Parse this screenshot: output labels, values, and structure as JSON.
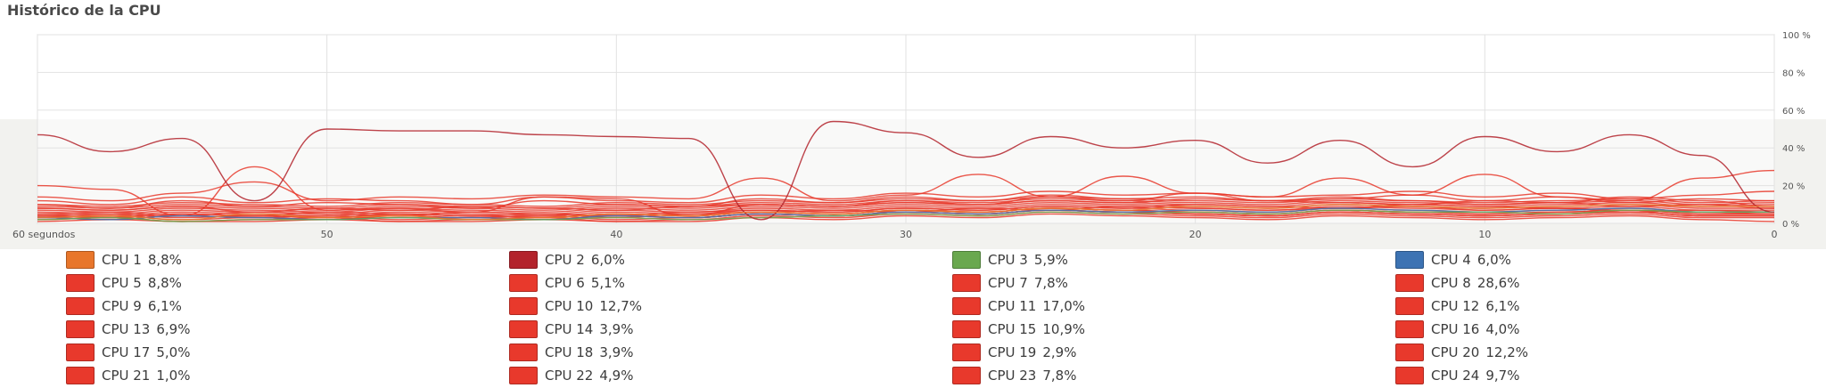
{
  "title": "Histórico de la CPU",
  "chart_data": {
    "type": "line",
    "xlabel": "",
    "ylabel": "",
    "x_ticks": [
      "60 segundos",
      "50",
      "40",
      "30",
      "20",
      "10",
      "0"
    ],
    "y_ticks": [
      "0 %",
      "20 %",
      "40 %",
      "60 %",
      "80 %",
      "100 %"
    ],
    "x_range": [
      60,
      0
    ],
    "ylim": [
      0,
      100
    ],
    "grid": true,
    "x": [
      60,
      57.5,
      55,
      52.5,
      50,
      47.5,
      45,
      42.5,
      40,
      37.5,
      35,
      32.5,
      30,
      27.5,
      25,
      22.5,
      20,
      17.5,
      15,
      12.5,
      10,
      7.5,
      5,
      2.5,
      0
    ],
    "series": [
      {
        "name": "CPU 1",
        "color": "#e8762b",
        "values": [
          3,
          4,
          2,
          5,
          3,
          4,
          2,
          3,
          5,
          4,
          6,
          5,
          7,
          6,
          8,
          7,
          9,
          8,
          10,
          9,
          8,
          9,
          10,
          9,
          9
        ]
      },
      {
        "name": "CPU 2",
        "color": "#b3232c",
        "values": [
          47,
          38,
          45,
          12,
          50,
          49,
          49,
          47,
          46,
          45,
          2,
          54,
          48,
          35,
          46,
          40,
          44,
          32,
          44,
          30,
          46,
          38,
          47,
          36,
          6
        ]
      },
      {
        "name": "CPU 3",
        "color": "#6aa84f",
        "values": [
          2,
          3,
          1,
          2,
          2,
          3,
          2,
          2,
          3,
          2,
          3,
          4,
          5,
          4,
          6,
          5,
          6,
          5,
          7,
          6,
          6,
          5,
          7,
          6,
          6
        ]
      },
      {
        "name": "CPU 4",
        "color": "#3d73b3",
        "values": [
          3,
          2,
          4,
          3,
          2,
          3,
          3,
          2,
          4,
          3,
          5,
          4,
          6,
          5,
          7,
          6,
          7,
          6,
          8,
          7,
          6,
          7,
          8,
          6,
          6
        ]
      },
      {
        "name": "CPU 5",
        "color": "#e8392c",
        "values": [
          20,
          18,
          4,
          30,
          7,
          8,
          6,
          14,
          13,
          4,
          10,
          9,
          12,
          10,
          14,
          12,
          16,
          12,
          14,
          12,
          10,
          11,
          14,
          12,
          9
        ]
      },
      {
        "name": "CPU 6",
        "color": "#e8392c",
        "values": [
          5,
          6,
          4,
          6,
          5,
          4,
          6,
          5,
          4,
          6,
          7,
          6,
          8,
          7,
          9,
          8,
          10,
          9,
          8,
          10,
          9,
          8,
          7,
          6,
          5
        ]
      },
      {
        "name": "CPU 7",
        "color": "#e8392c",
        "values": [
          8,
          7,
          9,
          6,
          8,
          7,
          9,
          8,
          7,
          9,
          10,
          9,
          11,
          10,
          12,
          11,
          13,
          12,
          11,
          10,
          12,
          11,
          9,
          10,
          8
        ]
      },
      {
        "name": "CPU 8",
        "color": "#e8392c",
        "values": [
          14,
          12,
          16,
          22,
          12,
          14,
          13,
          15,
          14,
          13,
          24,
          12,
          15,
          26,
          14,
          25,
          16,
          14,
          24,
          15,
          26,
          14,
          12,
          24,
          28
        ]
      },
      {
        "name": "CPU 9",
        "color": "#e8392c",
        "values": [
          4,
          5,
          3,
          4,
          6,
          5,
          4,
          5,
          3,
          5,
          6,
          7,
          6,
          8,
          7,
          9,
          8,
          7,
          8,
          9,
          7,
          8,
          6,
          7,
          6
        ]
      },
      {
        "name": "CPU 10",
        "color": "#e8392c",
        "values": [
          10,
          8,
          12,
          9,
          11,
          10,
          8,
          12,
          10,
          9,
          13,
          11,
          14,
          12,
          15,
          13,
          14,
          12,
          13,
          15,
          12,
          14,
          11,
          13,
          12
        ]
      },
      {
        "name": "CPU 11",
        "color": "#e8392c",
        "values": [
          12,
          10,
          14,
          11,
          13,
          12,
          10,
          14,
          12,
          11,
          15,
          13,
          16,
          14,
          17,
          15,
          16,
          14,
          15,
          17,
          14,
          16,
          13,
          15,
          17
        ]
      },
      {
        "name": "CPU 12",
        "color": "#e8392c",
        "values": [
          5,
          4,
          6,
          5,
          4,
          6,
          5,
          4,
          6,
          5,
          7,
          6,
          8,
          7,
          9,
          8,
          7,
          6,
          8,
          7,
          6,
          7,
          8,
          6,
          6
        ]
      },
      {
        "name": "CPU 13",
        "color": "#e8392c",
        "values": [
          6,
          5,
          7,
          6,
          5,
          7,
          6,
          5,
          7,
          6,
          8,
          7,
          9,
          8,
          10,
          9,
          8,
          7,
          9,
          8,
          7,
          8,
          9,
          7,
          7
        ]
      },
      {
        "name": "CPU 14",
        "color": "#e8392c",
        "values": [
          3,
          2,
          4,
          3,
          2,
          4,
          3,
          2,
          4,
          3,
          5,
          4,
          6,
          5,
          7,
          6,
          5,
          4,
          6,
          5,
          4,
          5,
          6,
          4,
          4
        ]
      },
      {
        "name": "CPU 15",
        "color": "#e8392c",
        "values": [
          9,
          8,
          10,
          9,
          8,
          10,
          9,
          8,
          10,
          9,
          11,
          10,
          12,
          11,
          13,
          12,
          11,
          10,
          12,
          11,
          10,
          11,
          12,
          10,
          11
        ]
      },
      {
        "name": "CPU 16",
        "color": "#e8392c",
        "values": [
          3,
          4,
          2,
          3,
          4,
          2,
          3,
          4,
          2,
          3,
          5,
          4,
          6,
          5,
          7,
          6,
          5,
          4,
          6,
          5,
          4,
          5,
          6,
          4,
          4
        ]
      },
      {
        "name": "CPU 17",
        "color": "#e8392c",
        "values": [
          4,
          3,
          5,
          4,
          3,
          5,
          4,
          3,
          5,
          4,
          6,
          5,
          7,
          6,
          8,
          7,
          6,
          5,
          7,
          6,
          5,
          6,
          7,
          5,
          5
        ]
      },
      {
        "name": "CPU 18",
        "color": "#e8392c",
        "values": [
          3,
          2,
          4,
          3,
          2,
          4,
          3,
          2,
          4,
          3,
          5,
          4,
          6,
          5,
          7,
          6,
          5,
          4,
          6,
          5,
          4,
          5,
          6,
          4,
          4
        ]
      },
      {
        "name": "CPU 19",
        "color": "#e8392c",
        "values": [
          2,
          3,
          1,
          2,
          3,
          1,
          2,
          3,
          1,
          2,
          4,
          3,
          5,
          4,
          6,
          5,
          4,
          3,
          5,
          4,
          3,
          4,
          5,
          3,
          3
        ]
      },
      {
        "name": "CPU 20",
        "color": "#e8392c",
        "values": [
          10,
          9,
          11,
          10,
          9,
          11,
          10,
          9,
          11,
          10,
          12,
          11,
          13,
          12,
          14,
          13,
          12,
          11,
          13,
          12,
          11,
          12,
          13,
          11,
          12
        ]
      },
      {
        "name": "CPU 21",
        "color": "#e8392c",
        "values": [
          1,
          2,
          1,
          1,
          2,
          1,
          1,
          2,
          1,
          1,
          3,
          2,
          4,
          3,
          5,
          4,
          3,
          2,
          4,
          3,
          2,
          3,
          4,
          2,
          1
        ]
      },
      {
        "name": "CPU 22",
        "color": "#e8392c",
        "values": [
          4,
          3,
          5,
          4,
          3,
          5,
          4,
          3,
          5,
          4,
          6,
          5,
          7,
          6,
          8,
          7,
          6,
          5,
          7,
          6,
          5,
          6,
          7,
          5,
          5
        ]
      },
      {
        "name": "CPU 23",
        "color": "#e8392c",
        "values": [
          7,
          6,
          8,
          7,
          6,
          8,
          7,
          6,
          8,
          7,
          9,
          8,
          10,
          9,
          11,
          10,
          9,
          8,
          10,
          9,
          8,
          9,
          10,
          8,
          8
        ]
      },
      {
        "name": "CPU 24",
        "color": "#e8392c",
        "values": [
          8,
          7,
          9,
          8,
          7,
          9,
          8,
          7,
          9,
          8,
          10,
          9,
          11,
          10,
          12,
          11,
          10,
          9,
          11,
          10,
          9,
          10,
          11,
          9,
          10
        ]
      }
    ]
  },
  "legend": [
    {
      "name": "CPU 1",
      "value": "8,8%",
      "color": "#e8762b"
    },
    {
      "name": "CPU 2",
      "value": "6,0%",
      "color": "#b3232c"
    },
    {
      "name": "CPU 3",
      "value": "5,9%",
      "color": "#6aa84f"
    },
    {
      "name": "CPU 4",
      "value": "6,0%",
      "color": "#3d73b3"
    },
    {
      "name": "CPU 5",
      "value": "8,8%",
      "color": "#e8392c"
    },
    {
      "name": "CPU 6",
      "value": "5,1%",
      "color": "#e8392c"
    },
    {
      "name": "CPU 7",
      "value": "7,8%",
      "color": "#e8392c"
    },
    {
      "name": "CPU 8",
      "value": "28,6%",
      "color": "#e8392c"
    },
    {
      "name": "CPU 9",
      "value": "6,1%",
      "color": "#e8392c"
    },
    {
      "name": "CPU 10",
      "value": "12,7%",
      "color": "#e8392c"
    },
    {
      "name": "CPU 11",
      "value": "17,0%",
      "color": "#e8392c"
    },
    {
      "name": "CPU 12",
      "value": "6,1%",
      "color": "#e8392c"
    },
    {
      "name": "CPU 13",
      "value": "6,9%",
      "color": "#e8392c"
    },
    {
      "name": "CPU 14",
      "value": "3,9%",
      "color": "#e8392c"
    },
    {
      "name": "CPU 15",
      "value": "10,9%",
      "color": "#e8392c"
    },
    {
      "name": "CPU 16",
      "value": "4,0%",
      "color": "#e8392c"
    },
    {
      "name": "CPU 17",
      "value": "5,0%",
      "color": "#e8392c"
    },
    {
      "name": "CPU 18",
      "value": "3,9%",
      "color": "#e8392c"
    },
    {
      "name": "CPU 19",
      "value": "2,9%",
      "color": "#e8392c"
    },
    {
      "name": "CPU 20",
      "value": "12,2%",
      "color": "#e8392c"
    },
    {
      "name": "CPU 21",
      "value": "1,0%",
      "color": "#e8392c"
    },
    {
      "name": "CPU 22",
      "value": "4,9%",
      "color": "#e8392c"
    },
    {
      "name": "CPU 23",
      "value": "7,8%",
      "color": "#e8392c"
    },
    {
      "name": "CPU 24",
      "value": "9,7%",
      "color": "#e8392c"
    }
  ]
}
